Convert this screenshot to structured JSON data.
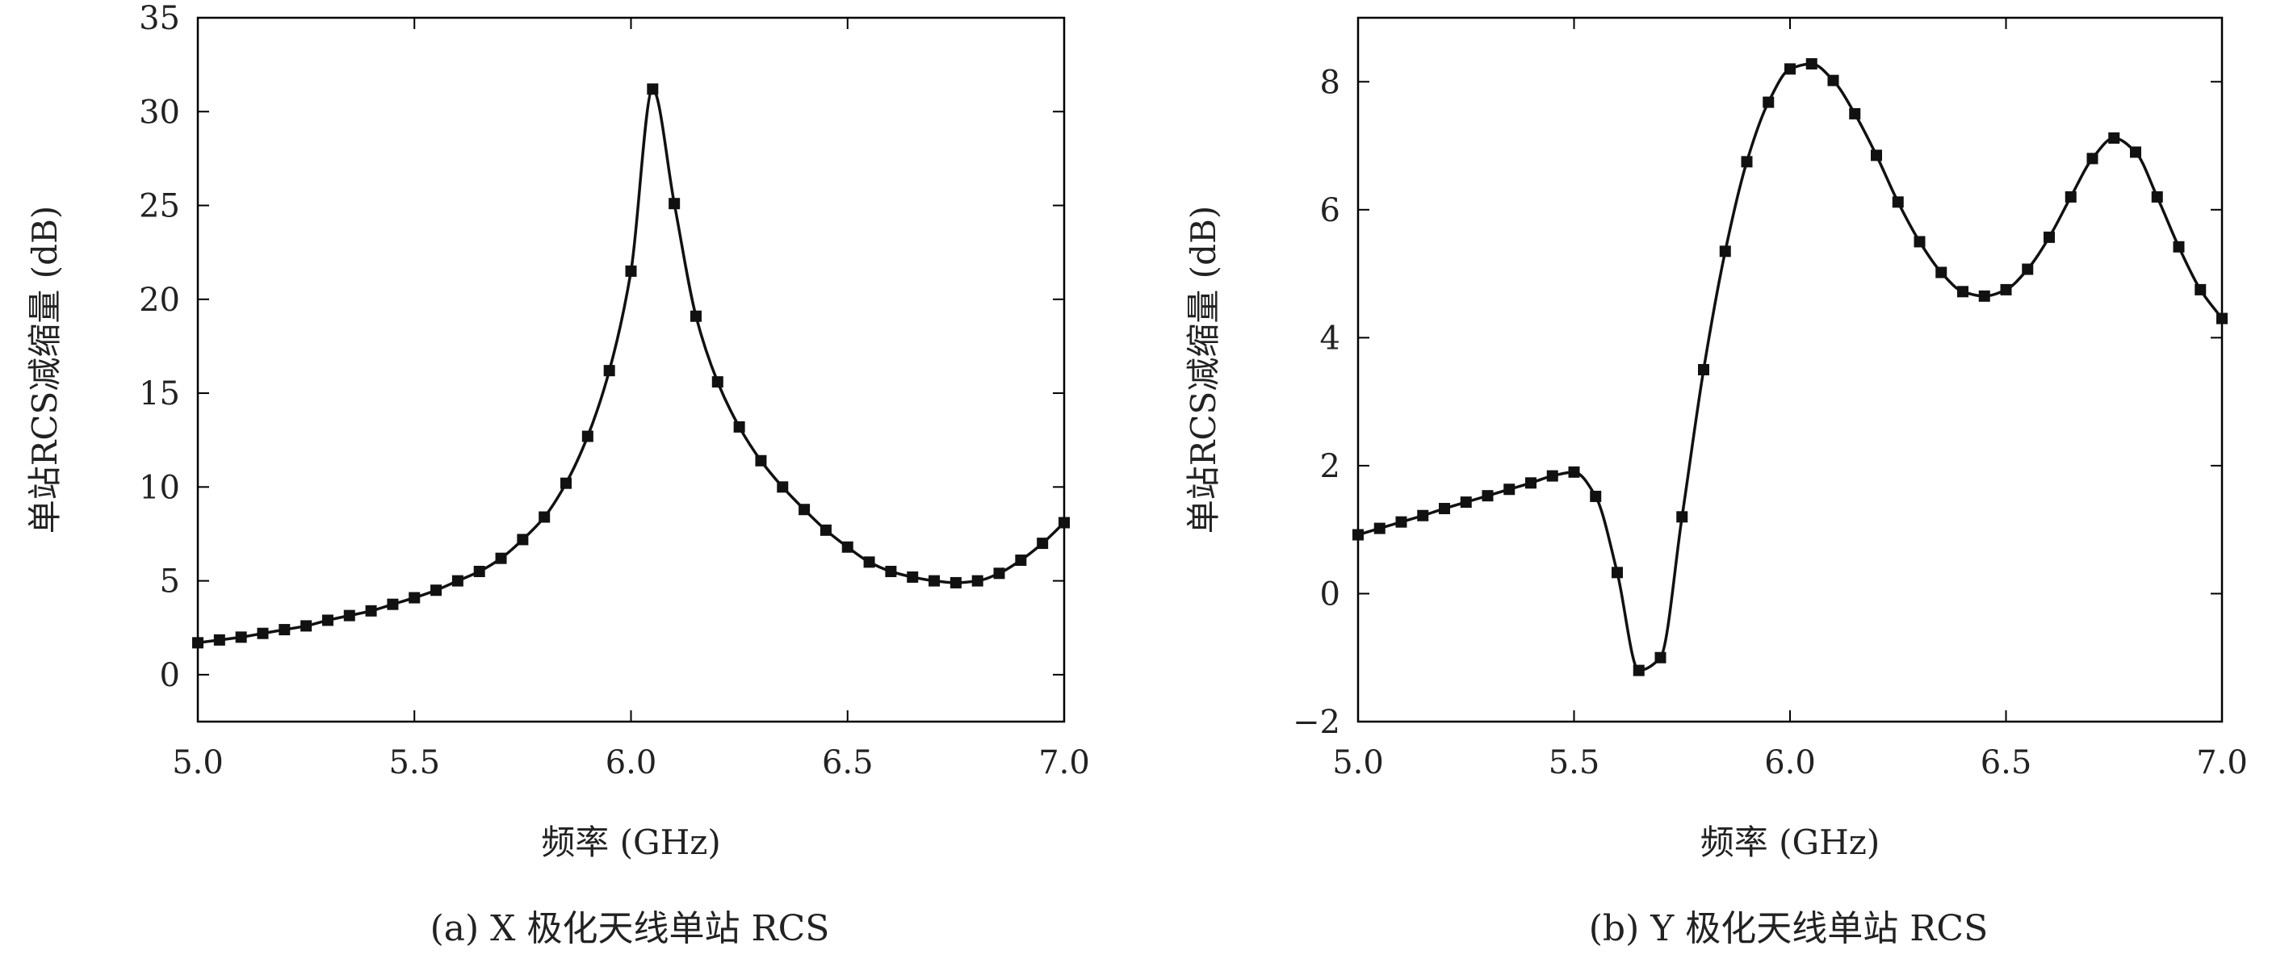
{
  "chart_data": [
    {
      "type": "line",
      "caption": "(a) X 极化天线单站 RCS",
      "xlabel": "频率 (GHz)",
      "ylabel": "单站RCS减缩量 (dB)",
      "xlim": [
        5.0,
        7.0
      ],
      "ylim": [
        -2.5,
        35
      ],
      "xticks": [
        "5.0",
        "5.5",
        "6.0",
        "6.5",
        "7.0"
      ],
      "yticks": [
        "0",
        "5",
        "10",
        "15",
        "20",
        "25",
        "30",
        "35"
      ],
      "marker": "square",
      "series": [
        {
          "name": "X",
          "x": [
            5.0,
            5.05,
            5.1,
            5.15,
            5.2,
            5.25,
            5.3,
            5.35,
            5.4,
            5.45,
            5.5,
            5.55,
            5.6,
            5.65,
            5.7,
            5.75,
            5.8,
            5.85,
            5.9,
            5.95,
            6.0,
            6.05,
            6.1,
            6.15,
            6.2,
            6.25,
            6.3,
            6.35,
            6.4,
            6.45,
            6.5,
            6.55,
            6.6,
            6.65,
            6.7,
            6.75,
            6.8,
            6.85,
            6.9,
            6.95,
            7.0
          ],
          "y": [
            1.7,
            1.85,
            2.0,
            2.2,
            2.4,
            2.6,
            2.9,
            3.15,
            3.4,
            3.75,
            4.1,
            4.5,
            5.0,
            5.5,
            6.2,
            7.2,
            8.4,
            10.2,
            12.7,
            16.2,
            21.5,
            31.2,
            25.1,
            19.1,
            15.6,
            13.2,
            11.4,
            10.0,
            8.8,
            7.7,
            6.8,
            6.0,
            5.5,
            5.2,
            5.0,
            4.9,
            5.0,
            5.4,
            6.1,
            7.0,
            8.1
          ]
        }
      ]
    },
    {
      "type": "line",
      "caption": "(b) Y 极化天线单站 RCS",
      "xlabel": "频率 (GHz)",
      "ylabel": "单站RCS减缩量 (dB)",
      "xlim": [
        5.0,
        7.0
      ],
      "ylim": [
        -2,
        9
      ],
      "xticks": [
        "5.0",
        "5.5",
        "6.0",
        "6.5",
        "7.0"
      ],
      "yticks": [
        "−2",
        "0",
        "2",
        "4",
        "6",
        "8"
      ],
      "marker": "square",
      "series": [
        {
          "name": "Y",
          "x": [
            5.0,
            5.05,
            5.1,
            5.15,
            5.2,
            5.25,
            5.3,
            5.35,
            5.4,
            5.45,
            5.5,
            5.55,
            5.6,
            5.65,
            5.7,
            5.75,
            5.8,
            5.85,
            5.9,
            5.95,
            6.0,
            6.05,
            6.1,
            6.15,
            6.2,
            6.25,
            6.3,
            6.35,
            6.4,
            6.45,
            6.5,
            6.55,
            6.6,
            6.65,
            6.7,
            6.75,
            6.8,
            6.85,
            6.9,
            6.95,
            7.0
          ],
          "y": [
            0.92,
            1.02,
            1.12,
            1.22,
            1.33,
            1.43,
            1.53,
            1.63,
            1.73,
            1.84,
            1.9,
            1.52,
            0.33,
            -1.2,
            -1.0,
            1.2,
            3.5,
            5.35,
            6.75,
            7.68,
            8.2,
            8.28,
            8.02,
            7.5,
            6.85,
            6.12,
            5.5,
            5.02,
            4.72,
            4.65,
            4.75,
            5.07,
            5.57,
            6.2,
            6.8,
            7.12,
            6.9,
            6.2,
            5.42,
            4.75,
            4.3
          ]
        }
      ]
    }
  ]
}
